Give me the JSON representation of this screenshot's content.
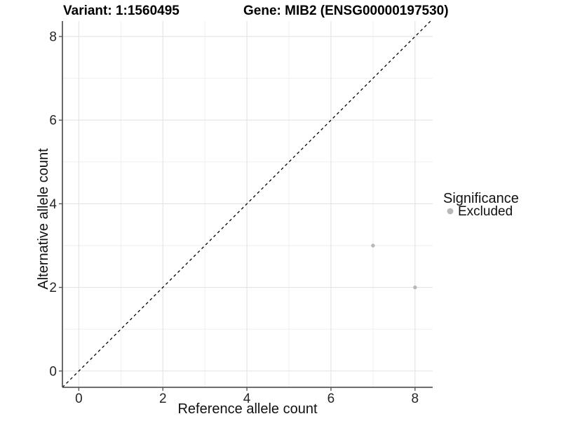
{
  "header": {
    "title_left": "Variant: 1:1560495",
    "title_right": "Gene: MIB2 (ENSG00000197530)"
  },
  "chart_data": {
    "type": "scatter",
    "title_left": "Variant: 1:1560495",
    "title_right": "Gene: MIB2 (ENSG00000197530)",
    "xlabel": "Reference allele count",
    "ylabel": "Alternative allele count",
    "xlim": [
      -0.39,
      8.42
    ],
    "ylim": [
      -0.39,
      8.37
    ],
    "x_ticks": [
      0,
      2,
      4,
      6,
      8
    ],
    "y_ticks": [
      0,
      2,
      4,
      6,
      8
    ],
    "x_minor_ticks": [
      1,
      3,
      5,
      7
    ],
    "y_minor_ticks": [
      1,
      3,
      5,
      7
    ],
    "grid": "major_and_minor",
    "reference_line": {
      "equation": "y = x",
      "style": "dashed",
      "color": "#000000"
    },
    "series": [
      {
        "name": "Excluded",
        "color": "#b8b8b8",
        "points": [
          {
            "x": 7,
            "y": 3
          },
          {
            "x": 8,
            "y": 2
          }
        ]
      }
    ],
    "legend": {
      "title": "Significance",
      "position": "right",
      "items": [
        {
          "label": "Excluded",
          "color": "#b8b8b8",
          "marker": "circle"
        }
      ]
    },
    "colors": {
      "grid_major": "#e3e3e3",
      "grid_minor": "#eeeeee",
      "axis_line": "#595959",
      "point": "#b8b8b8",
      "dashed_line": "#000000"
    }
  }
}
